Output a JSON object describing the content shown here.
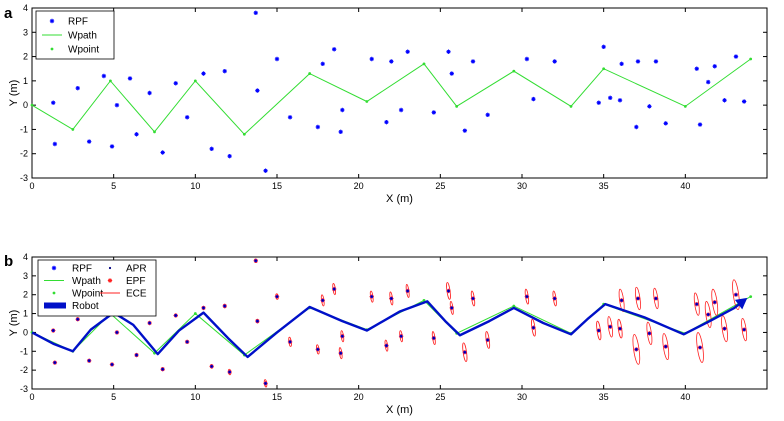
{
  "colors": {
    "rpf": "#0000ff",
    "wpath": "#33dd33",
    "wpoint": "#33dd33",
    "apr": "#000080",
    "epf": "#ff2020",
    "ece": "#ff2020",
    "robot": "#0010c8",
    "axis": "#000000"
  },
  "chart_data": [
    {
      "panel": "a",
      "type": "scatter",
      "xlabel": "X (m)",
      "ylabel": "Y (m)",
      "xlim": [
        0,
        45
      ],
      "ylim": [
        -3,
        4
      ],
      "xticks": [
        0,
        5,
        10,
        15,
        20,
        25,
        30,
        35,
        40
      ],
      "yticks": [
        -3,
        -2,
        -1,
        0,
        1,
        2,
        3,
        4
      ],
      "legend_position": "top-left",
      "legend": [
        "RPF",
        "Wpath",
        "Wpoint"
      ],
      "wpath": [
        [
          0,
          0
        ],
        [
          2.5,
          -1
        ],
        [
          4.8,
          1
        ],
        [
          7.5,
          -1.1
        ],
        [
          10,
          1
        ],
        [
          13,
          -1.2
        ],
        [
          17,
          1.3
        ],
        [
          20.5,
          0.15
        ],
        [
          24,
          1.7
        ],
        [
          26,
          -0.05
        ],
        [
          29.5,
          1.4
        ],
        [
          33,
          -0.05
        ],
        [
          35,
          1.5
        ],
        [
          40,
          -0.05
        ],
        [
          44,
          1.9
        ]
      ],
      "rpf": [
        [
          1.3,
          0.1
        ],
        [
          1.4,
          -1.6
        ],
        [
          2.8,
          0.7
        ],
        [
          3.5,
          -1.5
        ],
        [
          4.4,
          1.2
        ],
        [
          4.9,
          -1.7
        ],
        [
          5.2,
          0
        ],
        [
          6,
          1.1
        ],
        [
          6.4,
          -1.2
        ],
        [
          7.2,
          0.5
        ],
        [
          8,
          -1.95
        ],
        [
          8.8,
          0.9
        ],
        [
          9.5,
          -0.5
        ],
        [
          10.5,
          1.3
        ],
        [
          11,
          -1.8
        ],
        [
          11.8,
          1.4
        ],
        [
          12.1,
          -2.1
        ],
        [
          13.7,
          3.8
        ],
        [
          13.8,
          0.6
        ],
        [
          14.3,
          -2.7
        ],
        [
          15,
          1.9
        ],
        [
          15.8,
          -0.5
        ],
        [
          17.5,
          -0.9
        ],
        [
          17.8,
          1.7
        ],
        [
          18.5,
          2.3
        ],
        [
          18.9,
          -1.1
        ],
        [
          19,
          -0.2
        ],
        [
          20.8,
          1.9
        ],
        [
          21.7,
          -0.7
        ],
        [
          22,
          1.8
        ],
        [
          22.6,
          -0.2
        ],
        [
          23,
          2.2
        ],
        [
          24.6,
          -0.3
        ],
        [
          25.5,
          2.2
        ],
        [
          25.7,
          1.3
        ],
        [
          26.5,
          -1.05
        ],
        [
          27,
          1.8
        ],
        [
          27.9,
          -0.4
        ],
        [
          30.3,
          1.9
        ],
        [
          30.7,
          0.25
        ],
        [
          32,
          1.8
        ],
        [
          34.7,
          0.1
        ],
        [
          35.4,
          0.3
        ],
        [
          35,
          2.4
        ],
        [
          36,
          0.2
        ],
        [
          36.1,
          1.7
        ],
        [
          37,
          -0.9
        ],
        [
          37.1,
          1.8
        ],
        [
          37.8,
          -0.05
        ],
        [
          38.2,
          1.8
        ],
        [
          38.8,
          -0.75
        ],
        [
          40.7,
          1.5
        ],
        [
          40.9,
          -0.8
        ],
        [
          41.4,
          0.95
        ],
        [
          41.8,
          1.6
        ],
        [
          42.4,
          0.2
        ],
        [
          43.1,
          2
        ],
        [
          43.6,
          0.15
        ]
      ]
    },
    {
      "panel": "b",
      "type": "line",
      "xlabel": "X (m)",
      "ylabel": "Y (m)",
      "xlim": [
        0,
        45
      ],
      "ylim": [
        -3,
        4
      ],
      "xticks": [
        0,
        5,
        10,
        15,
        20,
        25,
        30,
        35,
        40
      ],
      "yticks": [
        -3,
        -2,
        -1,
        0,
        1,
        2,
        3,
        4
      ],
      "legend_position": "top-left",
      "legend": [
        "RPF",
        "Wpath",
        "Wpoint",
        "Robot",
        "APR",
        "EPF",
        "ECE"
      ],
      "robot_path": [
        [
          0,
          0
        ],
        [
          1.3,
          -0.6
        ],
        [
          2.5,
          -1
        ],
        [
          3.6,
          0.15
        ],
        [
          5,
          1.05
        ],
        [
          6.2,
          0.4
        ],
        [
          7.7,
          -1.15
        ],
        [
          9,
          0.1
        ],
        [
          10.5,
          1.05
        ],
        [
          12,
          -0.3
        ],
        [
          13.2,
          -1.3
        ],
        [
          15,
          0
        ],
        [
          17,
          1.35
        ],
        [
          19,
          0.6
        ],
        [
          20.5,
          0.1
        ],
        [
          22.5,
          1.1
        ],
        [
          24.2,
          1.65
        ],
        [
          25.3,
          0.6
        ],
        [
          26.2,
          -0.15
        ],
        [
          28,
          0.6
        ],
        [
          29.5,
          1.3
        ],
        [
          31.3,
          0.5
        ],
        [
          33,
          -0.1
        ],
        [
          34,
          0.7
        ],
        [
          35.1,
          1.5
        ],
        [
          37.5,
          0.8
        ],
        [
          39.9,
          -0.1
        ],
        [
          41.5,
          0.6
        ],
        [
          43,
          1.3
        ],
        [
          43.6,
          1.7
        ]
      ],
      "rpf": [
        [
          1.3,
          0.1
        ],
        [
          1.4,
          -1.6
        ],
        [
          2.8,
          0.7
        ],
        [
          3.5,
          -1.5
        ],
        [
          4.4,
          1.2
        ],
        [
          4.9,
          -1.7
        ],
        [
          5.2,
          0
        ],
        [
          6,
          1.1
        ],
        [
          6.4,
          -1.2
        ],
        [
          7.2,
          0.5
        ],
        [
          8,
          -1.95
        ],
        [
          8.8,
          0.9
        ],
        [
          9.5,
          -0.5
        ],
        [
          10.5,
          1.3
        ],
        [
          11,
          -1.8
        ],
        [
          11.8,
          1.4
        ],
        [
          12.1,
          -2.1
        ],
        [
          13.7,
          3.8
        ],
        [
          13.8,
          0.6
        ],
        [
          14.3,
          -2.7
        ],
        [
          15,
          1.9
        ],
        [
          15.8,
          -0.5
        ],
        [
          17.5,
          -0.9
        ],
        [
          17.8,
          1.7
        ],
        [
          18.5,
          2.3
        ],
        [
          18.9,
          -1.1
        ],
        [
          19,
          -0.2
        ],
        [
          20.8,
          1.9
        ],
        [
          21.7,
          -0.7
        ],
        [
          22,
          1.8
        ],
        [
          22.6,
          -0.2
        ],
        [
          23,
          2.2
        ],
        [
          24.6,
          -0.3
        ],
        [
          25.5,
          2.2
        ],
        [
          25.7,
          1.3
        ],
        [
          26.5,
          -1.05
        ],
        [
          27,
          1.8
        ],
        [
          27.9,
          -0.4
        ],
        [
          30.3,
          1.9
        ],
        [
          30.7,
          0.25
        ],
        [
          32,
          1.8
        ],
        [
          34.7,
          0.1
        ],
        [
          35.4,
          0.3
        ],
        [
          36,
          0.2
        ],
        [
          36.1,
          1.7
        ],
        [
          37,
          -0.9
        ],
        [
          37.1,
          1.8
        ],
        [
          37.8,
          -0.05
        ],
        [
          38.2,
          1.8
        ],
        [
          38.8,
          -0.75
        ],
        [
          40.7,
          1.5
        ],
        [
          40.9,
          -0.8
        ],
        [
          41.4,
          0.95
        ],
        [
          41.8,
          1.6
        ],
        [
          42.4,
          0.2
        ],
        [
          43.1,
          2
        ],
        [
          43.6,
          0.15
        ]
      ],
      "ece_extent": [
        0.05,
        0.05,
        0.05,
        0.05,
        0.05,
        0.05,
        0.05,
        0.05,
        0.05,
        0.05,
        0.05,
        0.05,
        0.05,
        0.05,
        0.1,
        0.1,
        0.15,
        0.1,
        0.1,
        0.2,
        0.15,
        0.25,
        0.25,
        0.3,
        0.3,
        0.3,
        0.3,
        0.3,
        0.3,
        0.35,
        0.3,
        0.35,
        0.35,
        0.45,
        0.35,
        0.5,
        0.4,
        0.45,
        0.4,
        0.45,
        0.4,
        0.5,
        0.55,
        0.5,
        0.6,
        0.8,
        0.6,
        0.6,
        0.55,
        0.7,
        0.6,
        0.8,
        0.7,
        0.7,
        0.7,
        0.8,
        0.6
      ]
    }
  ]
}
